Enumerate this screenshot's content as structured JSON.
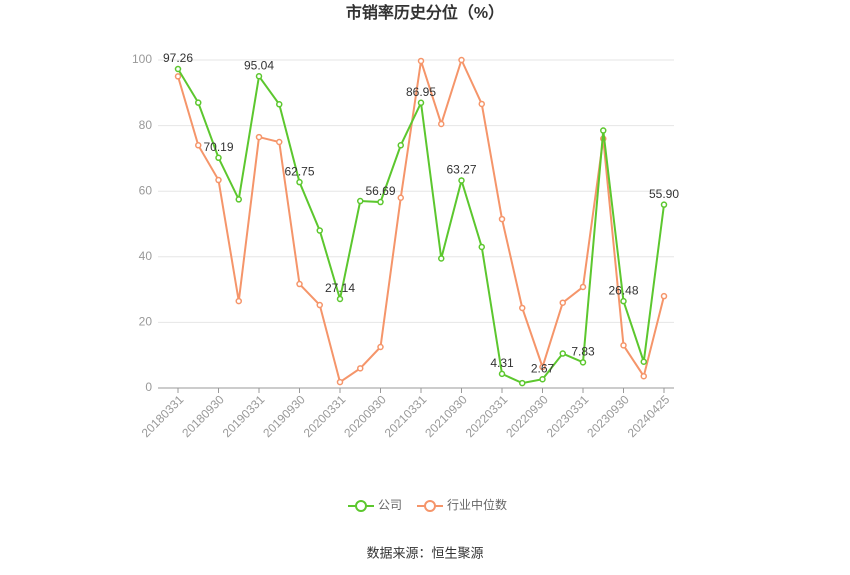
{
  "chart_data": {
    "type": "line",
    "title": "市销率历史分位（%）",
    "categories": [
      "20180331",
      null,
      "20180930",
      null,
      "20190331",
      null,
      "20190930",
      null,
      "20200331",
      null,
      "20200930",
      null,
      "20210331",
      null,
      "20210930",
      null,
      "20220331",
      null,
      "20220930",
      null,
      "20230331",
      null,
      "20230930",
      null,
      "20240425"
    ],
    "series": [
      {
        "name": "公司",
        "color": "#5cc72e",
        "values": [
          97.26,
          87,
          70.19,
          57.5,
          95.04,
          86.5,
          62.75,
          48,
          27.14,
          57,
          56.69,
          74,
          86.95,
          39.5,
          63.27,
          43,
          4.31,
          1.5,
          2.67,
          10.5,
          7.83,
          78.5,
          26.48,
          8,
          55.9
        ],
        "value_labels": [
          "97.26",
          null,
          "70.19",
          null,
          "95.04",
          null,
          "62.75",
          null,
          "27.14",
          null,
          "56.69",
          null,
          "86.95",
          null,
          "63.27",
          null,
          "4.31",
          null,
          "2.67",
          null,
          "7.83",
          null,
          "26.48",
          null,
          "55.90"
        ]
      },
      {
        "name": "行业中位数",
        "color": "#f5956a",
        "values": [
          95,
          74,
          63.4,
          26.5,
          76.5,
          75,
          31.7,
          25.3,
          1.8,
          6,
          12.5,
          58,
          99.7,
          80.5,
          100,
          86.6,
          51.5,
          24.4,
          6.4,
          26,
          30.8,
          76,
          13,
          3.6,
          28
        ]
      }
    ],
    "ylim": [
      0,
      100
    ],
    "yticks": [
      0,
      20,
      40,
      60,
      80,
      100
    ],
    "grid": true,
    "legend": "bottom",
    "source": "数据来源：恒生聚源"
  }
}
